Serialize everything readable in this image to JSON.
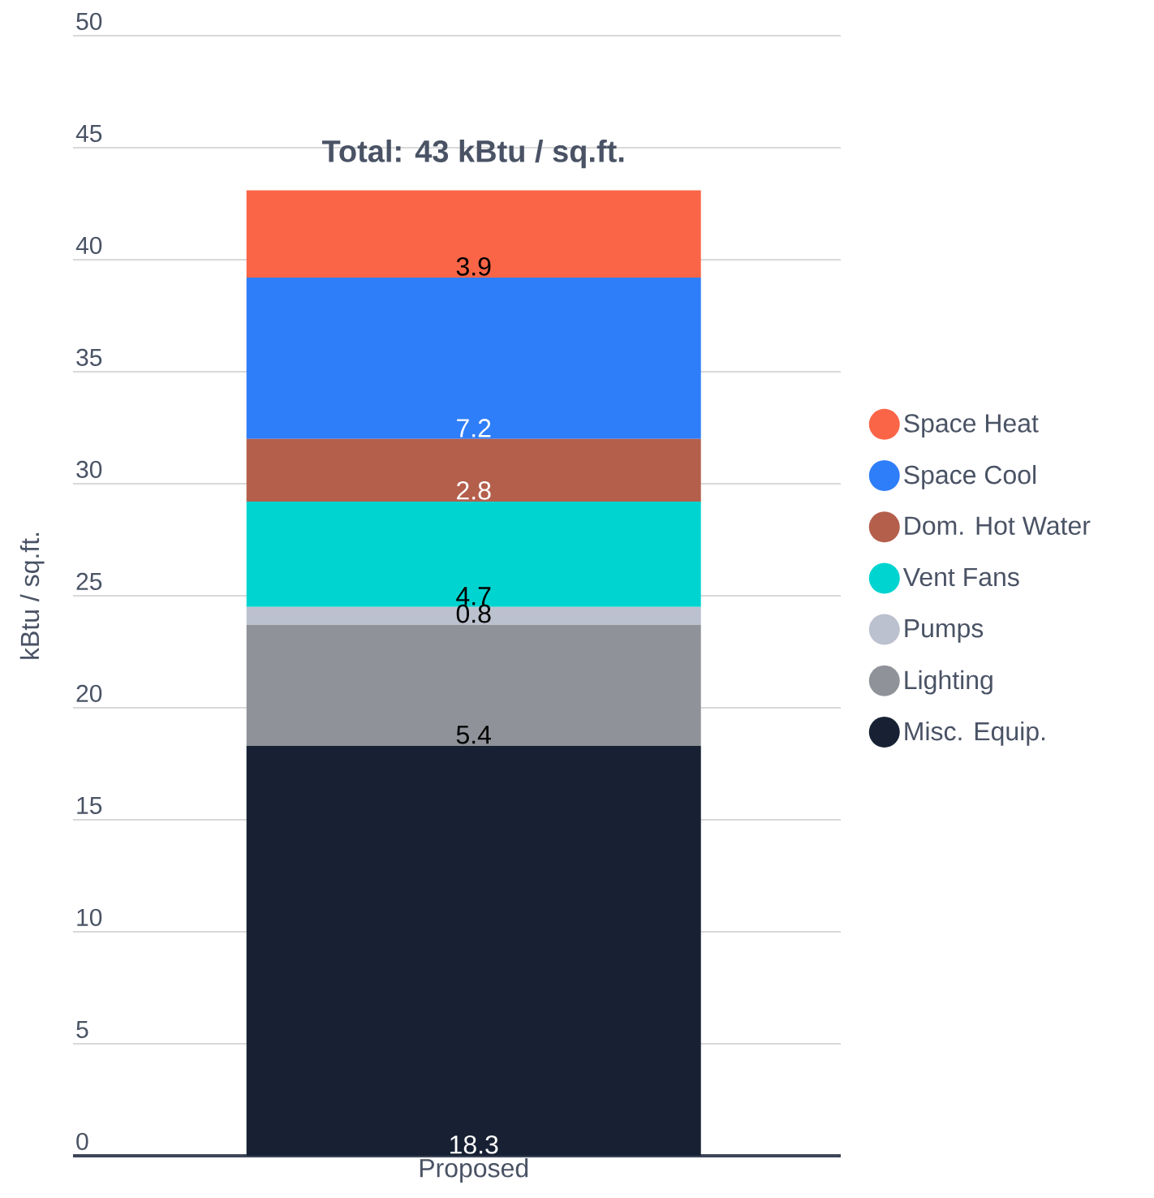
{
  "chart_data": {
    "type": "bar",
    "stacked": true,
    "ylabel": "kBtu / sq.ft.",
    "categories": [
      "Proposed"
    ],
    "series": [
      {
        "name": "Misc. Equip.",
        "color": "#172133",
        "values": [
          18.3
        ]
      },
      {
        "name": "Lighting",
        "color": "#8f9399",
        "values": [
          5.4
        ]
      },
      {
        "name": "Pumps",
        "color": "#bcc1cf",
        "values": [
          0.8
        ]
      },
      {
        "name": "Vent Fans",
        "color": "#00d4d0",
        "values": [
          4.7
        ]
      },
      {
        "name": "Dom. Hot Water",
        "color": "#b45f4c",
        "values": [
          2.8
        ]
      },
      {
        "name": "Space Cool",
        "color": "#2f7ef9",
        "values": [
          7.2
        ]
      },
      {
        "name": "Space Heat",
        "color": "#fa6547",
        "values": [
          3.9
        ]
      }
    ],
    "totals": [
      "Total: 43 kBtu / sq.ft."
    ],
    "ylim": [
      0,
      50
    ],
    "yticks": [
      0,
      5,
      10,
      15,
      20,
      25,
      30,
      35,
      40,
      45,
      50
    ],
    "grid": "y",
    "legend": "right",
    "data_labels": true
  }
}
